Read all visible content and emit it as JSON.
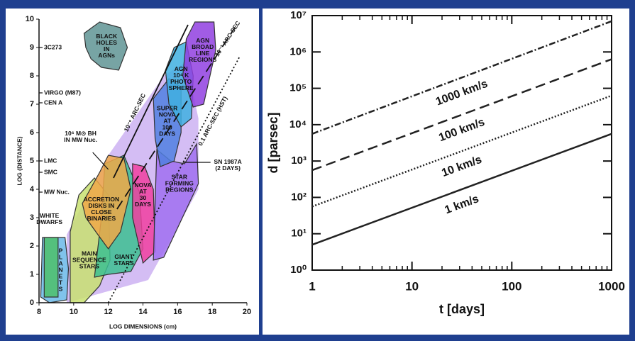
{
  "chart_data": [
    {
      "type": "region",
      "xlabel": "LOG DIMENSIONS (cm)",
      "ylabel": "LOG (DISTANCE)",
      "xlim": [
        8,
        20
      ],
      "ylim": [
        0,
        10
      ],
      "xticks": [
        8,
        10,
        12,
        14,
        16,
        18,
        20
      ],
      "yticks": [
        0,
        1,
        2,
        3,
        4,
        5,
        6,
        7,
        8,
        9,
        10
      ],
      "regions": [
        {
          "color": "#cdb2f2",
          "x": [
            9.6,
            14.3,
            17.2,
            17.2,
            16.5,
            15.2,
            12.0,
            9.6
          ],
          "y": [
            0,
            0.8,
            4.0,
            6.5,
            8.5,
            8.0,
            5.2,
            2.4
          ]
        },
        {
          "label": [
            "BLACK",
            "HOLES",
            "IN",
            "AGNs"
          ],
          "color": "#5f9494",
          "label_x": 11.9,
          "label_y": 9.05,
          "x": [
            10.6,
            11.5,
            12.7,
            13.1,
            12.6,
            11.6,
            11.0,
            10.7
          ],
          "y": [
            9.5,
            9.9,
            9.7,
            9.0,
            8.2,
            8.3,
            8.6,
            9.0
          ]
        },
        {
          "label": [
            "P",
            "L",
            "A",
            "N",
            "E",
            "T",
            "S"
          ],
          "color": "#6ab8e8",
          "label_x": 9.25,
          "label_y": 1.15,
          "x": [
            8.1,
            8.6,
            9.6,
            9.7,
            9.5,
            8.2
          ],
          "y": [
            0.2,
            0,
            0.1,
            1.2,
            2.3,
            2.3
          ]
        },
        {
          "label": [
            "WHITE",
            "DWARFS"
          ],
          "color": "#4cc06a",
          "label_x": 8.6,
          "label_y": 2.95,
          "x": [
            8.3,
            9.1,
            9.1,
            8.3
          ],
          "y": [
            0.2,
            0.2,
            2.3,
            2.3
          ]
        },
        {
          "label": [
            "MAIN",
            "SEQUENCE",
            "STARS"
          ],
          "color": "#c8e070",
          "label_x": 10.9,
          "label_y": 1.5,
          "x": [
            9.8,
            10.6,
            11.5,
            12.1,
            12.0,
            11.2,
            10.3,
            9.8
          ],
          "y": [
            0,
            0,
            0.6,
            1.5,
            3.8,
            4.4,
            3.8,
            2.5
          ]
        },
        {
          "label": [
            "GIANT",
            "STARS"
          ],
          "color": "#3cc090",
          "label_x": 12.9,
          "label_y": 1.5,
          "x": [
            11.2,
            12.0,
            13.3,
            14.0,
            13.8,
            12.9,
            11.8,
            11.6
          ],
          "y": [
            0.9,
            1.0,
            1.1,
            1.9,
            3.9,
            5.2,
            4.9,
            3.0
          ]
        },
        {
          "label": [
            "ACCRETION",
            "DISKS IN",
            "CLOSE",
            "BINARIES"
          ],
          "color": "#f0a848",
          "label_x": 11.6,
          "label_y": 3.3,
          "x": [
            10.5,
            11.5,
            12.0,
            12.9,
            13.3,
            12.7,
            12.0,
            11.4,
            10.7
          ],
          "y": [
            3.5,
            4.6,
            5.2,
            5.1,
            4.0,
            2.5,
            1.9,
            2.4,
            3.0
          ]
        },
        {
          "label": [
            "NOVA",
            "AT",
            "30",
            "DAYS"
          ],
          "color": "#f040a0",
          "label_x": 14.0,
          "label_y": 3.8,
          "x": [
            13.4,
            14.1,
            14.6,
            14.7,
            14.0,
            13.4
          ],
          "y": [
            4.9,
            4.8,
            4.0,
            1.8,
            1.4,
            3.0
          ]
        },
        {
          "label": [
            "STAR",
            "FORMING",
            "REGIONS"
          ],
          "color": "#a070f0",
          "label_x": 16.1,
          "label_y": 4.2,
          "x": [
            14.8,
            15.6,
            16.4,
            17.1,
            17.2,
            15.2,
            14.6,
            14.7
          ],
          "y": [
            5.4,
            5.0,
            4.9,
            5.6,
            4.2,
            1.6,
            1.5,
            3.5
          ]
        },
        {
          "label": [
            "SUPER",
            "NOVA",
            "AT",
            "100",
            "DAYS"
          ],
          "color": "#5080e0",
          "label_x": 15.4,
          "label_y": 6.4,
          "x": [
            14.6,
            15.5,
            16.2,
            16.2,
            15.8,
            15.0,
            14.7
          ],
          "y": [
            7.2,
            7.9,
            7.6,
            6.0,
            5.0,
            4.8,
            5.8
          ]
        },
        {
          "label": [
            "AGN",
            "10⁴ K",
            "PHOTO",
            "SPHERE"
          ],
          "color": "#40b0e0",
          "label_x": 16.2,
          "label_y": 7.9,
          "x": [
            15.3,
            15.8,
            16.5,
            16.9,
            16.8,
            16.2,
            15.5
          ],
          "y": [
            8.2,
            9.0,
            9.2,
            8.0,
            6.5,
            6.2,
            7.0
          ]
        },
        {
          "label": [
            "AGN",
            "BROAD",
            "LINE",
            "REGIONS"
          ],
          "color": "#9040e0",
          "label_x": 17.45,
          "label_y": 8.9,
          "x": [
            16.5,
            17.0,
            18.1,
            18.2,
            17.5,
            16.9,
            16.3
          ],
          "y": [
            9.3,
            9.9,
            9.9,
            8.9,
            7.0,
            6.9,
            8.0
          ]
        }
      ],
      "markers": [
        {
          "label": "3C273",
          "y": 9
        },
        {
          "label": "VIRGO (M87)",
          "y": 7.4
        },
        {
          "label": "CEN A",
          "y": 7.05
        },
        {
          "label": "LMC",
          "y": 5.0
        },
        {
          "label": "SMC",
          "y": 4.6
        },
        {
          "label": "MW Nuc.",
          "y": 3.9
        }
      ],
      "arcs": [
        {
          "label": "10⁻⁶ ARC-SEC",
          "style": "solid",
          "x": [
            12.3,
            16.6
          ],
          "y": [
            4.4,
            9.8
          ],
          "label_x": 13.55,
          "label_y": 6.7
        },
        {
          "label": "10⁻³ ARC-SEC",
          "style": "dashed",
          "x": [
            12.5,
            19.3
          ],
          "y": [
            3.3,
            9.7
          ],
          "label_x": 18.9,
          "label_y": 9.3
        },
        {
          "label": "0.1 ARC-SEC (HST)",
          "style": "dotted",
          "x": [
            12.0,
            19.6
          ],
          "y": [
            0,
            8.7
          ],
          "label_x": 18.05,
          "label_y": 6.4
        }
      ],
      "annotations": [
        {
          "label": [
            "10⁶ M⊙ BH",
            "IN MW Nuc."
          ],
          "label_x": 10.4,
          "label_y": 5.85,
          "x": [
            11.1,
            12.0
          ],
          "y": [
            5.3,
            4.7
          ]
        },
        {
          "label": [
            "SN 1987A",
            "(2 DAYS)"
          ],
          "label_x": 18.9,
          "label_y": 4.85,
          "x": [
            17.9,
            16.3
          ],
          "y": [
            4.95,
            4.95
          ]
        }
      ]
    },
    {
      "type": "line",
      "xlabel": "t [days]",
      "ylabel": "d [parsec]",
      "log_x": true,
      "log_y": true,
      "xlim": [
        1,
        1000
      ],
      "ylim": [
        1,
        10000000
      ],
      "xticks": [
        1,
        10,
        100,
        1000
      ],
      "yticks": [
        {
          "value": 1,
          "label": "10⁰"
        },
        {
          "value": 10,
          "label": "10¹"
        },
        {
          "value": 100,
          "label": "10²"
        },
        {
          "value": 1000,
          "label": "10³"
        },
        {
          "value": 10000,
          "label": "10⁴"
        },
        {
          "value": 100000,
          "label": "10⁵"
        },
        {
          "value": 1000000,
          "label": "10⁶"
        },
        {
          "value": 10000000,
          "label": "10⁷"
        }
      ],
      "x": [
        1,
        1000
      ],
      "series": [
        {
          "name": "1000 km/s",
          "linestyle": "dashdot",
          "color": "#222222",
          "values": [
            5600,
            7000000
          ]
        },
        {
          "name": "100 km/s",
          "linestyle": "dashed",
          "color": "#222222",
          "values": [
            560,
            630000
          ]
        },
        {
          "name": "10 km/s",
          "linestyle": "dotted",
          "color": "#222222",
          "values": [
            56,
            63000
          ]
        },
        {
          "name": "1 km/s",
          "linestyle": "solid",
          "color": "#222222",
          "values": [
            5,
            5600
          ]
        }
      ]
    }
  ]
}
